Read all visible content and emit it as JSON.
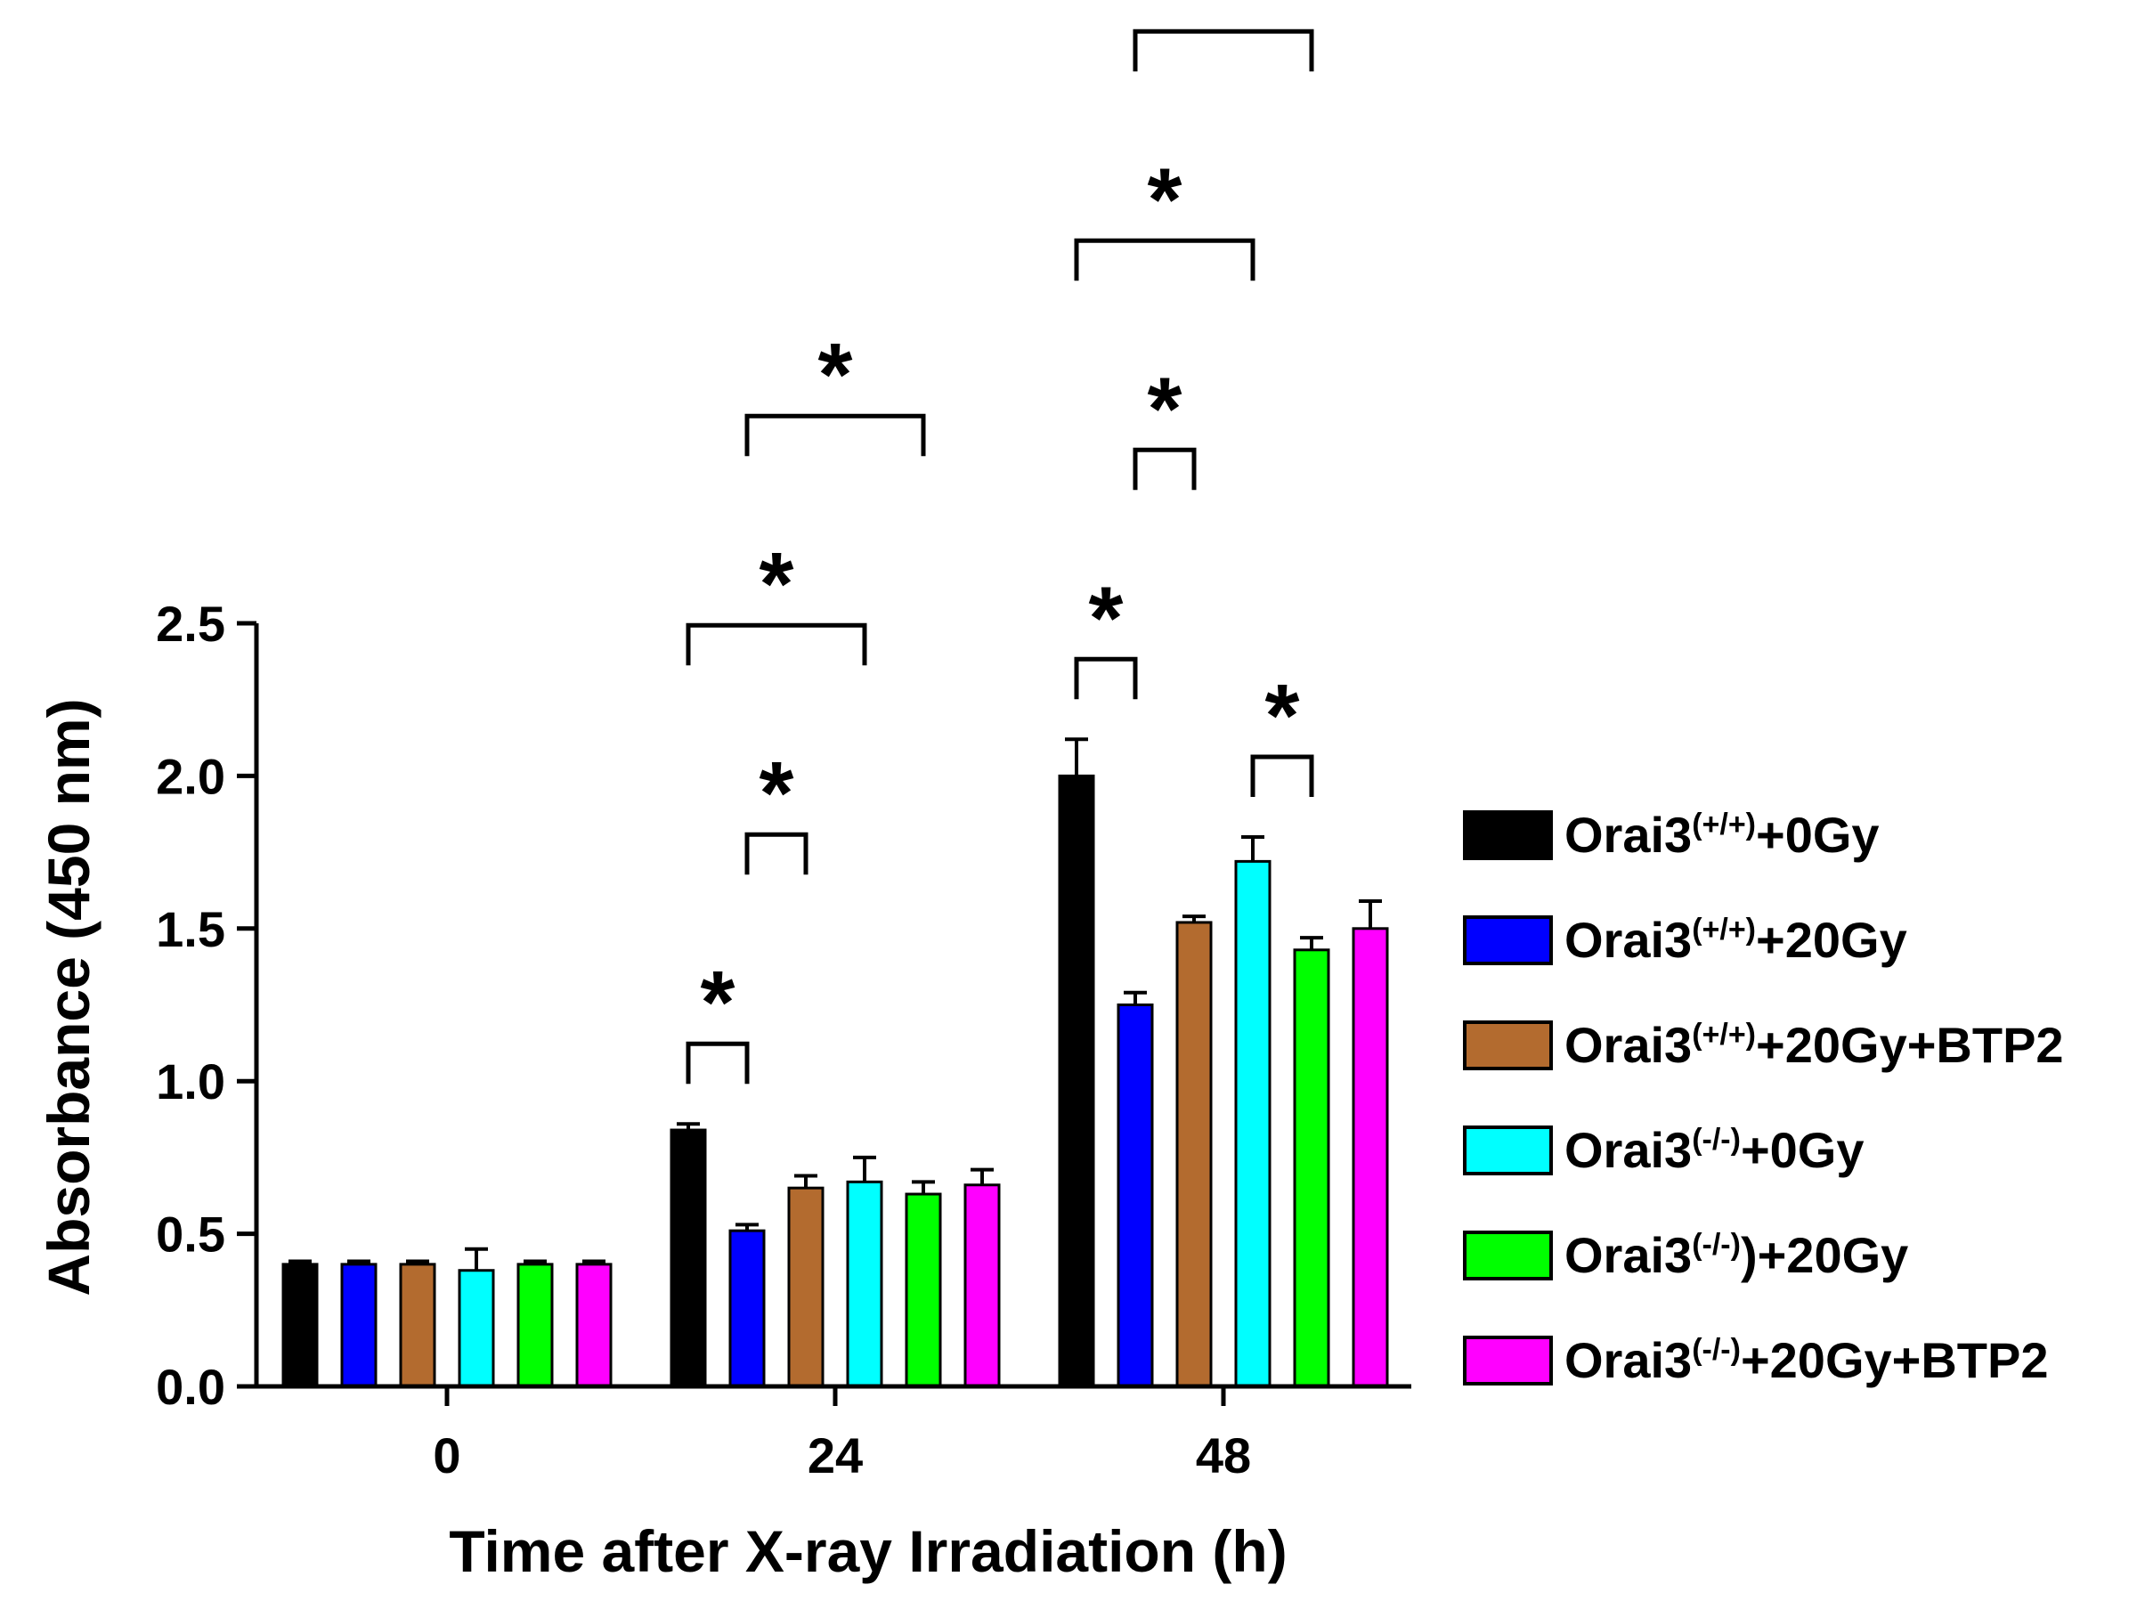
{
  "chart_data": {
    "type": "bar",
    "title": "",
    "xlabel": "Time after X-ray Irradiation (h)",
    "ylabel": "Absorbance (450 nm)",
    "ylim": [
      0,
      2.5
    ],
    "yticks": [
      "0.0",
      "0.5",
      "1.0",
      "1.5",
      "2.0",
      "2.5"
    ],
    "categories": [
      "0",
      "24",
      "48"
    ],
    "series": [
      {
        "name": "Orai3(+/+)+0Gy",
        "base": "Orai3",
        "sup": "(+/+)",
        "suffix": "+0Gy",
        "color": "#000000",
        "values": [
          0.4,
          0.84,
          2.0
        ],
        "errors": [
          0.01,
          0.02,
          0.12
        ]
      },
      {
        "name": "Orai3(+/+)+20Gy",
        "base": "Orai3",
        "sup": "(+/+)",
        "suffix": "+20Gy",
        "color": "#0000ff",
        "values": [
          0.4,
          0.51,
          1.25
        ],
        "errors": [
          0.01,
          0.02,
          0.04
        ]
      },
      {
        "name": "Orai3(+/+)+20Gy+BTP2",
        "base": "Orai3",
        "sup": "(+/+)",
        "suffix": "+20Gy+BTP2",
        "color": "#b36b2f",
        "values": [
          0.4,
          0.65,
          1.52
        ],
        "errors": [
          0.01,
          0.04,
          0.02
        ]
      },
      {
        "name": "Orai3(-/-)+0Gy",
        "base": "Orai3",
        "sup": "(-/-)",
        "suffix": "+0Gy",
        "color": "#00ffff",
        "values": [
          0.38,
          0.67,
          1.72
        ],
        "errors": [
          0.07,
          0.08,
          0.08
        ]
      },
      {
        "name": "Orai3(-/-)+20Gy",
        "base": "Orai3",
        "sup": "(-/-)",
        "suffix": ")+20Gy",
        "color": "#00ff00",
        "values": [
          0.4,
          0.63,
          1.43
        ],
        "errors": [
          0.01,
          0.04,
          0.04
        ]
      },
      {
        "name": "Orai3(-/-)+20Gy+BTP2",
        "base": "Orai3",
        "sup": "(-/-)",
        "suffix": "+20Gy+BTP2",
        "color": "#ff00ff",
        "values": [
          0.4,
          0.66,
          1.5
        ],
        "errors": [
          0.01,
          0.05,
          0.09
        ]
      }
    ],
    "legend_position": "right",
    "significance": [
      {
        "group": "24",
        "from": 0,
        "to": 1,
        "label": "*"
      },
      {
        "group": "24",
        "from": 1,
        "to": 2,
        "label": "*"
      },
      {
        "group": "24",
        "from": 0,
        "to": 3,
        "label": "*"
      },
      {
        "group": "24",
        "from": 1,
        "to": 4,
        "label": "*"
      },
      {
        "group": "48",
        "from": 0,
        "to": 1,
        "label": "*"
      },
      {
        "group": "48",
        "from": 1,
        "to": 2,
        "label": "*"
      },
      {
        "group": "48",
        "from": 3,
        "to": 4,
        "label": "*"
      },
      {
        "group": "48",
        "from": 0,
        "to": 3,
        "label": "*"
      },
      {
        "group": "48",
        "from": 1,
        "to": 4,
        "label": "*"
      }
    ]
  }
}
